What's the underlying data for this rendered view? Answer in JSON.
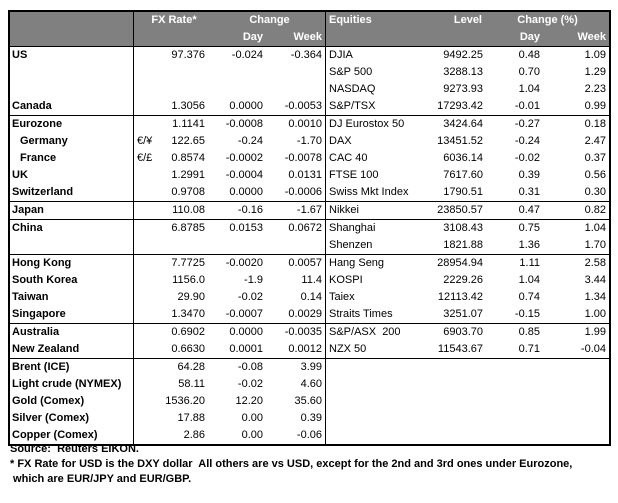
{
  "colors": {
    "header_bg": "#808080",
    "header_text": "#ffffff",
    "border": "#000000",
    "body_text": "#000000"
  },
  "header": {
    "fx_rate": "FX Rate*",
    "fx_change": "Change",
    "fx_day": "Day",
    "fx_week": "Week",
    "equities": "Equities",
    "level": "Level",
    "eq_change": "Change (%)",
    "eq_day": "Day",
    "eq_week": "Week"
  },
  "rows": [
    {
      "group_start": false,
      "indent": false,
      "fx_label": "US",
      "fx_pair": "",
      "fx_rate": "97.376",
      "fx_day": "-0.024",
      "fx_week": "-0.364",
      "eq_label": "DJIA",
      "eq_level": "9492.25",
      "eq_day": "0.48",
      "eq_week": "1.09"
    },
    {
      "group_start": false,
      "indent": false,
      "fx_label": "",
      "fx_pair": "",
      "fx_rate": "",
      "fx_day": "",
      "fx_week": "",
      "eq_label": "S&P 500",
      "eq_level": "3288.13",
      "eq_day": "0.70",
      "eq_week": "1.29"
    },
    {
      "group_start": false,
      "indent": false,
      "fx_label": "",
      "fx_pair": "",
      "fx_rate": "",
      "fx_day": "",
      "fx_week": "",
      "eq_label": "NASDAQ",
      "eq_level": "9273.93",
      "eq_day": "1.04",
      "eq_week": "2.23"
    },
    {
      "group_start": false,
      "indent": false,
      "fx_label": "Canada",
      "fx_pair": "",
      "fx_rate": "1.3056",
      "fx_day": "0.0000",
      "fx_week": "-0.0053",
      "eq_label": "S&P/TSX",
      "eq_level": "17293.42",
      "eq_day": "-0.01",
      "eq_week": "0.99"
    },
    {
      "group_start": true,
      "indent": false,
      "fx_label": "Eurozone",
      "fx_pair": "",
      "fx_rate": "1.1141",
      "fx_day": "-0.0008",
      "fx_week": "0.0010",
      "eq_label": "DJ Eurostox 50",
      "eq_level": "3424.64",
      "eq_day": "-0.27",
      "eq_week": "0.18"
    },
    {
      "group_start": false,
      "indent": true,
      "fx_label": "Germany",
      "fx_pair": "€/¥",
      "fx_rate": "122.65",
      "fx_day": "-0.24",
      "fx_week": "-1.70",
      "eq_label": "DAX",
      "eq_level": "13451.52",
      "eq_day": "-0.24",
      "eq_week": "2.47"
    },
    {
      "group_start": false,
      "indent": true,
      "fx_label": "France",
      "fx_pair": "€/£",
      "fx_rate": "0.8574",
      "fx_day": "-0.0002",
      "fx_week": "-0.0078",
      "eq_label": "CAC 40",
      "eq_level": "6036.14",
      "eq_day": "-0.02",
      "eq_week": "0.37"
    },
    {
      "group_start": false,
      "indent": false,
      "fx_label": "UK",
      "fx_pair": "",
      "fx_rate": "1.2991",
      "fx_day": "-0.0004",
      "fx_week": "0.0131",
      "eq_label": "FTSE 100",
      "eq_level": "7617.60",
      "eq_day": "0.39",
      "eq_week": "0.56"
    },
    {
      "group_start": false,
      "indent": false,
      "fx_label": "Switzerland",
      "fx_pair": "",
      "fx_rate": "0.9708",
      "fx_day": "0.0000",
      "fx_week": "-0.0006",
      "eq_label": "Swiss Mkt Index",
      "eq_level": "1790.51",
      "eq_day": "0.31",
      "eq_week": "0.30"
    },
    {
      "group_start": true,
      "indent": false,
      "fx_label": "Japan",
      "fx_pair": "",
      "fx_rate": "110.08",
      "fx_day": "-0.16",
      "fx_week": "-1.67",
      "eq_label": "Nikkei",
      "eq_level": "23850.57",
      "eq_day": "0.47",
      "eq_week": "0.82"
    },
    {
      "group_start": true,
      "indent": false,
      "fx_label": "China",
      "fx_pair": "",
      "fx_rate": "6.8785",
      "fx_day": "0.0153",
      "fx_week": "0.0672",
      "eq_label": "Shanghai",
      "eq_level": "3108.43",
      "eq_day": "0.75",
      "eq_week": "1.04"
    },
    {
      "group_start": false,
      "indent": false,
      "fx_label": "",
      "fx_pair": "",
      "fx_rate": "",
      "fx_day": "",
      "fx_week": "",
      "eq_label": "Shenzen",
      "eq_level": "1821.88",
      "eq_day": "1.36",
      "eq_week": "1.70"
    },
    {
      "group_start": true,
      "indent": false,
      "fx_label": "Hong Kong",
      "fx_pair": "",
      "fx_rate": "7.7725",
      "fx_day": "-0.0020",
      "fx_week": "0.0057",
      "eq_label": "Hang Seng",
      "eq_level": "28954.94",
      "eq_day": "1.11",
      "eq_week": "2.58"
    },
    {
      "group_start": false,
      "indent": false,
      "fx_label": "South Korea",
      "fx_pair": "",
      "fx_rate": "1156.0",
      "fx_day": "-1.9",
      "fx_week": "11.4",
      "eq_label": "KOSPI",
      "eq_level": "2229.26",
      "eq_day": "1.04",
      "eq_week": "3.44"
    },
    {
      "group_start": false,
      "indent": false,
      "fx_label": "Taiwan",
      "fx_pair": "",
      "fx_rate": "29.90",
      "fx_day": "-0.02",
      "fx_week": "0.14",
      "eq_label": "Taiex",
      "eq_level": "12113.42",
      "eq_day": "0.74",
      "eq_week": "1.34"
    },
    {
      "group_start": false,
      "indent": false,
      "fx_label": "Singapore",
      "fx_pair": "",
      "fx_rate": "1.3470",
      "fx_day": "-0.0007",
      "fx_week": "0.0029",
      "eq_label": "Straits Times",
      "eq_level": "3251.07",
      "eq_day": "-0.15",
      "eq_week": "1.00"
    },
    {
      "group_start": true,
      "indent": false,
      "fx_label": "Australia",
      "fx_pair": "",
      "fx_rate": "0.6902",
      "fx_day": "0.0000",
      "fx_week": "-0.0035",
      "eq_label": "S&P/ASX  200",
      "eq_level": "6903.70",
      "eq_day": "0.85",
      "eq_week": "1.99"
    },
    {
      "group_start": false,
      "indent": false,
      "fx_label": "New Zealand",
      "fx_pair": "",
      "fx_rate": "0.6630",
      "fx_day": "0.0001",
      "fx_week": "0.0012",
      "eq_label": "NZX 50",
      "eq_level": "11543.67",
      "eq_day": "0.71",
      "eq_week": "-0.04"
    },
    {
      "group_start": true,
      "indent": false,
      "fx_label": "Brent (ICE)",
      "fx_pair": "",
      "fx_rate": "64.28",
      "fx_day": "-0.08",
      "fx_week": "3.99",
      "eq_label": "",
      "eq_level": "",
      "eq_day": "",
      "eq_week": ""
    },
    {
      "group_start": false,
      "indent": false,
      "fx_label": "Light crude (NYMEX)",
      "fx_pair": "",
      "fx_rate": "58.11",
      "fx_day": "-0.02",
      "fx_week": "4.60",
      "eq_label": "",
      "eq_level": "",
      "eq_day": "",
      "eq_week": ""
    },
    {
      "group_start": false,
      "indent": false,
      "fx_label": "Gold (Comex)",
      "fx_pair": "",
      "fx_rate": "1536.20",
      "fx_day": "12.20",
      "fx_week": "35.60",
      "eq_label": "",
      "eq_level": "",
      "eq_day": "",
      "eq_week": ""
    },
    {
      "group_start": false,
      "indent": false,
      "fx_label": "Silver (Comex)",
      "fx_pair": "",
      "fx_rate": "17.88",
      "fx_day": "0.00",
      "fx_week": "0.39",
      "eq_label": "",
      "eq_level": "",
      "eq_day": "",
      "eq_week": ""
    },
    {
      "group_start": false,
      "indent": false,
      "fx_label": "Copper (Comex)",
      "fx_pair": "",
      "fx_rate": "2.86",
      "fx_day": "0.00",
      "fx_week": "-0.06",
      "eq_label": "",
      "eq_level": "",
      "eq_day": "",
      "eq_week": ""
    }
  ],
  "footer": {
    "source": "Source:  Reuters EIKON.",
    "note1": "* FX Rate for USD is the DXY dollar  All others are vs USD, except for the 2nd and 3rd ones under Eurozone,",
    "note2": " which are EUR/JPY and EUR/GBP."
  }
}
